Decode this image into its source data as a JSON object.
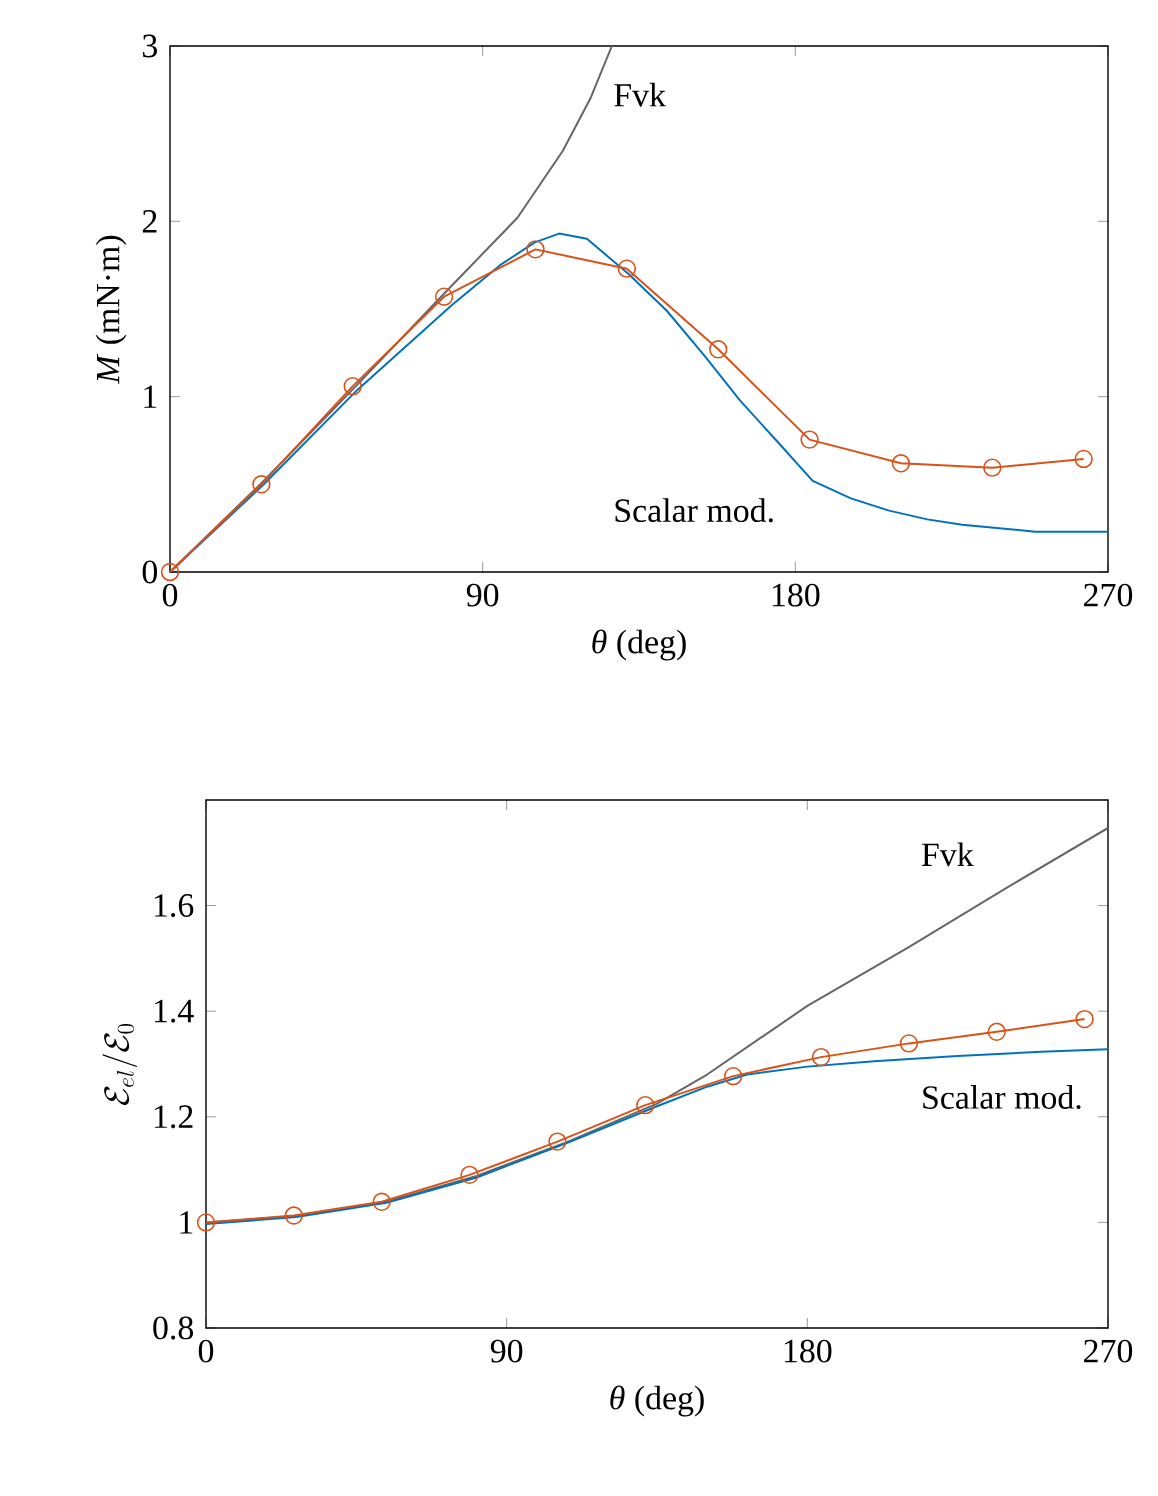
{
  "chart_data": [
    {
      "type": "line",
      "xlabel": "*θ* (deg)",
      "ylabel": "*M* (mN·m)",
      "xlim": [
        0,
        270
      ],
      "ylim": [
        0,
        3
      ],
      "xticks": [
        0,
        90,
        180,
        270
      ],
      "yticks": [
        0,
        1,
        2,
        3
      ],
      "series": [
        {
          "name": "Fvk",
          "color": "#666666",
          "x": [
            0,
            27,
            54,
            79,
            100,
            113,
            121,
            127.2
          ],
          "values": [
            0,
            0.52,
            1.07,
            1.59,
            2.02,
            2.4,
            2.7,
            3
          ]
        },
        {
          "name": "Scalar mod.",
          "color": "#0072bd",
          "x": [
            0,
            27,
            54,
            81,
            95,
            105,
            112,
            120,
            132,
            143,
            154,
            164,
            175,
            185,
            196,
            207,
            218,
            228,
            249,
            270
          ],
          "values": [
            0,
            0.5,
            1.04,
            1.52,
            1.75,
            1.88,
            1.93,
            1.9,
            1.7,
            1.49,
            1.23,
            0.98,
            0.74,
            0.52,
            0.42,
            0.35,
            0.3,
            0.27,
            0.23,
            0.23
          ]
        },
        {
          "color": "#d95319",
          "marker": "circle",
          "x": [
            0,
            26.3,
            52.6,
            78.9,
            105.2,
            131.5,
            157.8,
            184.1,
            210.4,
            236.7,
            263
          ],
          "values": [
            0,
            0.5,
            1.06,
            1.57,
            1.84,
            1.73,
            1.27,
            0.755,
            0.62,
            0.595,
            0.645
          ]
        }
      ]
    },
    {
      "type": "line",
      "xlabel": "*θ* (deg)",
      "ylabel": "\\mathcal{E}_{el}/\\mathcal{E}_0",
      "xlim": [
        0,
        270
      ],
      "ylim": [
        0.8,
        1.8
      ],
      "xticks": [
        0,
        90,
        180,
        270
      ],
      "yticks": [
        0.8,
        1,
        1.2,
        1.4,
        1.6
      ],
      "series": [
        {
          "name": "Fvk",
          "color": "#666666",
          "x": [
            0,
            27,
            54,
            81,
            108,
            135,
            150,
            180,
            210,
            240,
            270
          ],
          "values": [
            1,
            1.012,
            1.039,
            1.088,
            1.152,
            1.225,
            1.28,
            1.41,
            1.52,
            1.635,
            1.747
          ]
        },
        {
          "name": "Scalar mod.",
          "color": "#0072bd",
          "x": [
            0,
            27,
            54,
            81,
            108,
            135,
            150,
            162,
            180,
            200,
            225,
            250,
            270
          ],
          "values": [
            0.997,
            1.01,
            1.037,
            1.085,
            1.15,
            1.22,
            1.257,
            1.28,
            1.295,
            1.305,
            1.315,
            1.323,
            1.328
          ]
        },
        {
          "color": "#d95319",
          "marker": "circle",
          "x": [
            0,
            26.3,
            52.6,
            78.9,
            105.2,
            131.5,
            157.8,
            184.1,
            210.4,
            236.7,
            263
          ],
          "values": [
            1,
            1.013,
            1.039,
            1.09,
            1.153,
            1.222,
            1.277,
            1.313,
            1.339,
            1.361,
            1.385
          ]
        }
      ]
    }
  ]
}
